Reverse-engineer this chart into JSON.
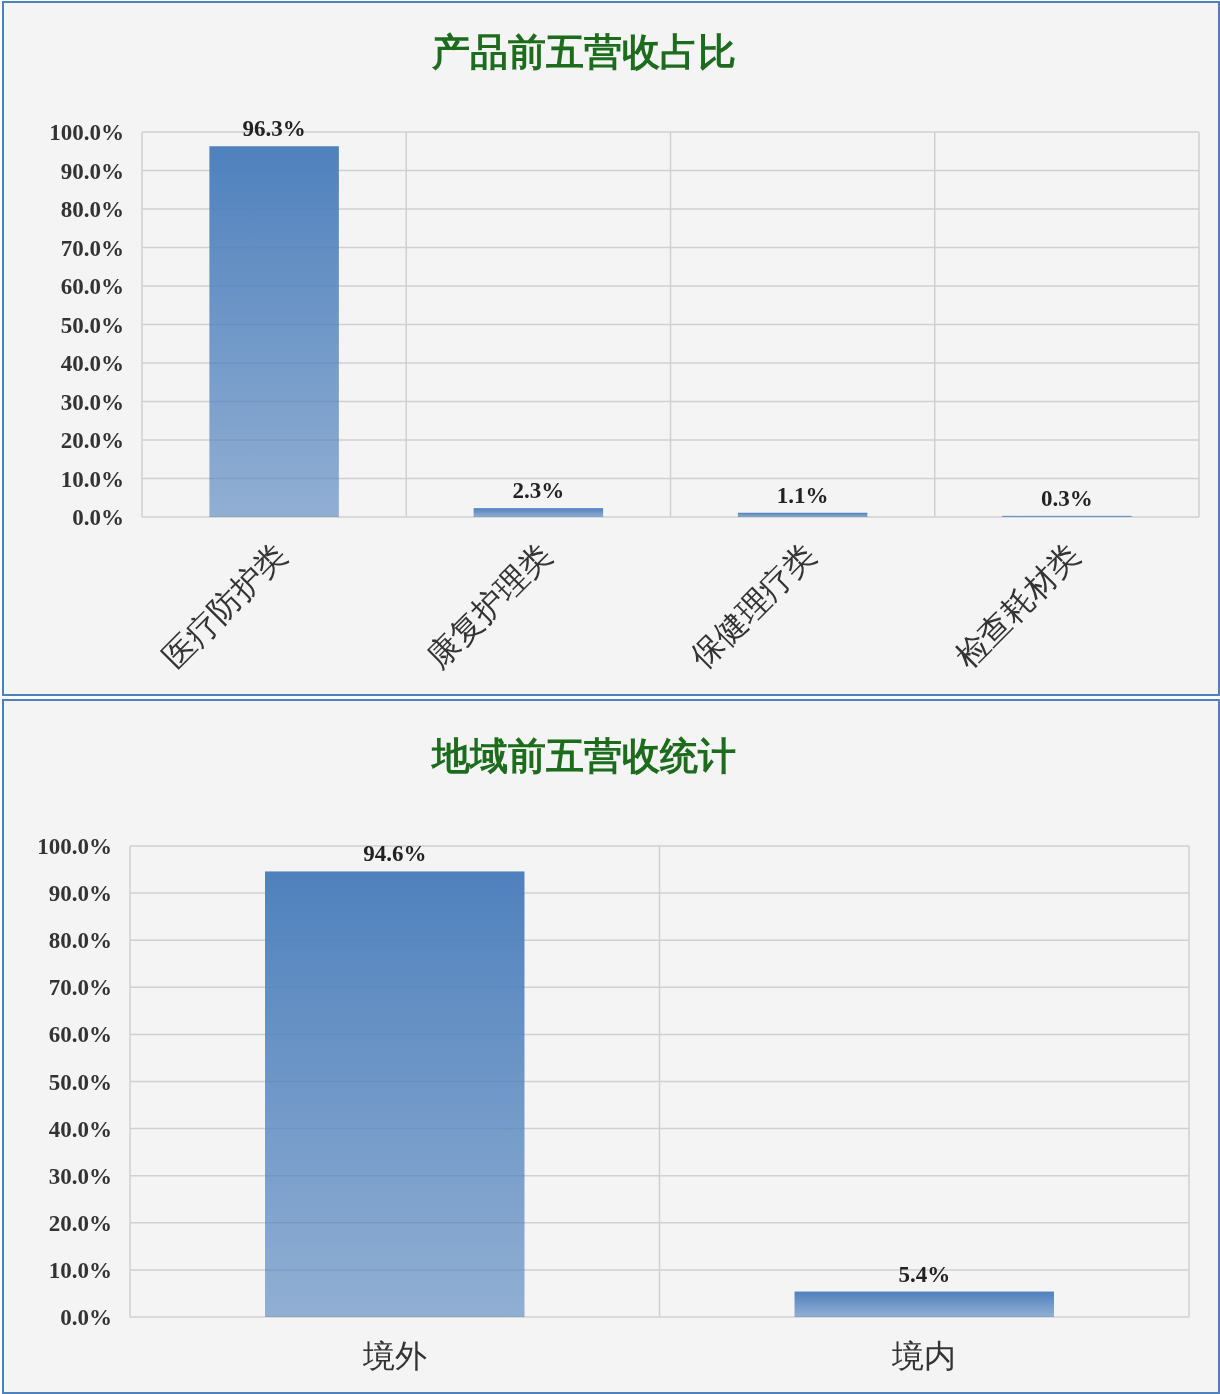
{
  "chart_data": [
    {
      "type": "bar",
      "title": "产品前五营收占比",
      "categories": [
        "医疗防护类",
        "康复护理类",
        "保健理疗类",
        "检查耗材类"
      ],
      "values": [
        96.3,
        2.3,
        1.1,
        0.3
      ],
      "value_labels": [
        "96.3%",
        "2.3%",
        "1.1%",
        "0.3%"
      ],
      "color": "#4f81bd",
      "ylim": [
        0,
        100
      ],
      "yticks": [
        {
          "value": 0,
          "label": "0.0%"
        },
        {
          "value": 10,
          "label": "10.0%"
        },
        {
          "value": 20,
          "label": "20.0%"
        },
        {
          "value": 30,
          "label": "30.0%"
        },
        {
          "value": 40,
          "label": "40.0%"
        },
        {
          "value": 50,
          "label": "50.0%"
        },
        {
          "value": 60,
          "label": "60.0%"
        },
        {
          "value": 70,
          "label": "70.0%"
        },
        {
          "value": 80,
          "label": "80.0%"
        },
        {
          "value": 90,
          "label": "90.0%"
        },
        {
          "value": 100,
          "label": "100.0%"
        }
      ],
      "grid": true
    },
    {
      "type": "bar",
      "title": "地域前五营收统计",
      "categories": [
        "境外",
        "境内"
      ],
      "values": [
        94.6,
        5.4
      ],
      "value_labels": [
        "94.6%",
        "5.4%"
      ],
      "color": "#4f81bd",
      "ylim": [
        0,
        100
      ],
      "yticks": [
        {
          "value": 0,
          "label": "0.0%"
        },
        {
          "value": 10,
          "label": "10.0%"
        },
        {
          "value": 20,
          "label": "20.0%"
        },
        {
          "value": 30,
          "label": "30.0%"
        },
        {
          "value": 40,
          "label": "40.0%"
        },
        {
          "value": 50,
          "label": "50.0%"
        },
        {
          "value": 60,
          "label": "60.0%"
        },
        {
          "value": 70,
          "label": "70.0%"
        },
        {
          "value": 80,
          "label": "80.0%"
        },
        {
          "value": 90,
          "label": "90.0%"
        },
        {
          "value": 100,
          "label": "100.0%"
        }
      ],
      "grid": true
    }
  ]
}
